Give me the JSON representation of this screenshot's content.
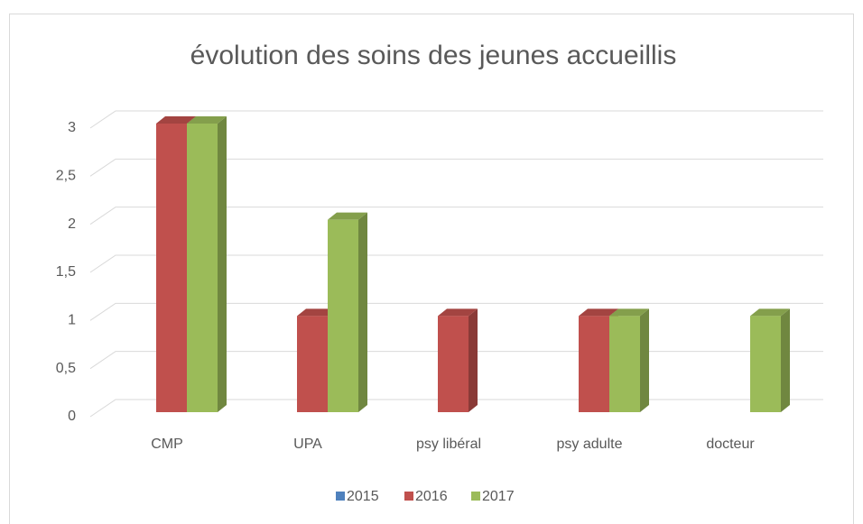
{
  "chart_data": {
    "type": "bar3d",
    "title": "évolution des soins des jeunes accueillis",
    "categories": [
      "CMP",
      "UPA",
      "psy libéral",
      "psy adulte",
      "docteur"
    ],
    "series": [
      {
        "name": "2015",
        "color": "#4f81bd",
        "values": [
          0,
          0,
          0,
          0,
          0
        ]
      },
      {
        "name": "2016",
        "color": "#c0504d",
        "values": [
          3,
          1,
          1,
          1,
          0
        ]
      },
      {
        "name": "2017",
        "color": "#9bbb59",
        "values": [
          3,
          2,
          0,
          1,
          1
        ]
      }
    ],
    "ylim": [
      0,
      3
    ],
    "yticks": [
      0,
      {
        "value": 0.5,
        "label": "0,5"
      },
      1,
      {
        "value": 1.5,
        "label": "1,5"
      },
      2,
      {
        "value": 2.5,
        "label": "2,5"
      },
      3
    ],
    "grid": true,
    "legend": "bottom"
  }
}
